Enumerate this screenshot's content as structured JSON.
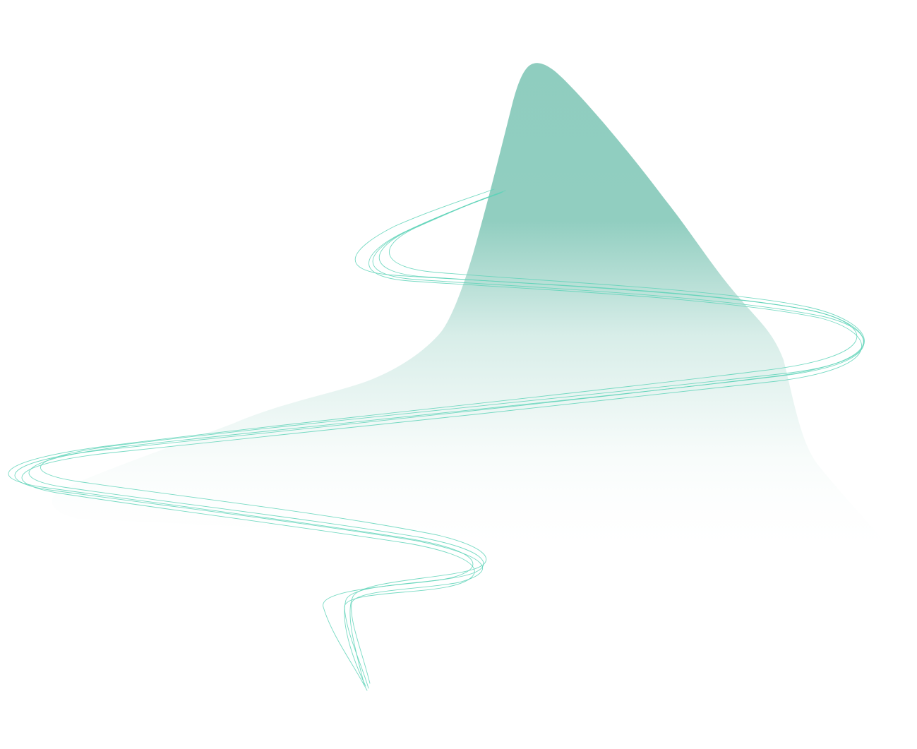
{
  "illustration": {
    "colors": {
      "peak_fill": "#8fcdbf",
      "fade_to": "#ffffff",
      "ribbon_stroke": "#5fd3b8"
    },
    "shape": "teal-peak-shape",
    "lines": "flowing-ribbon-lines"
  }
}
